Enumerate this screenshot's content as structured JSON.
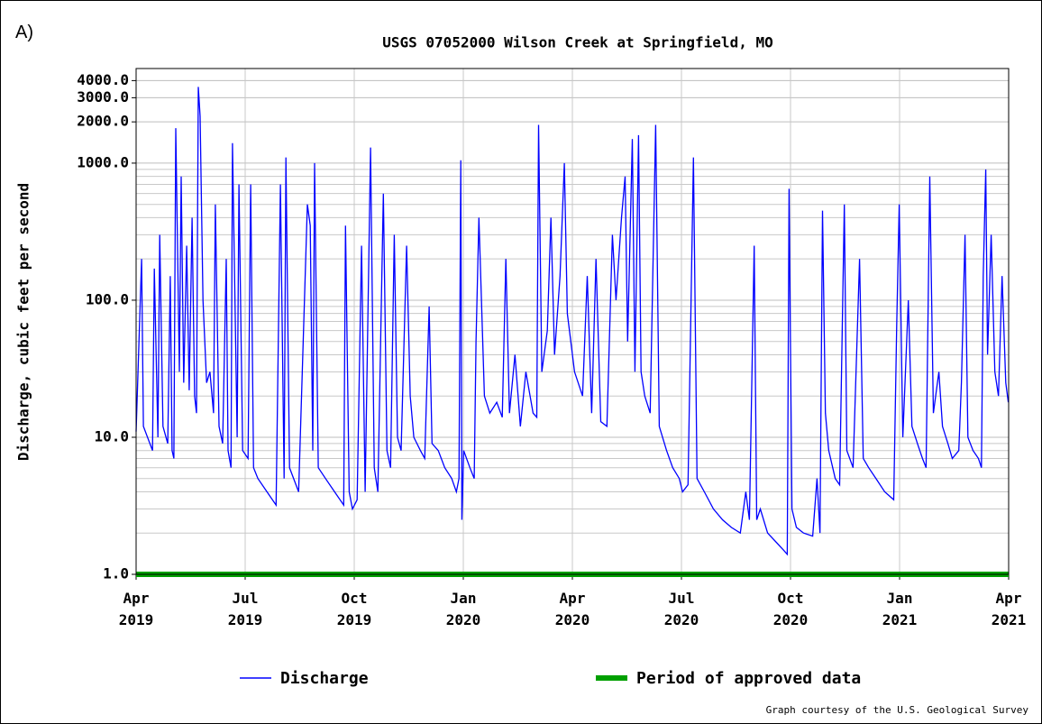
{
  "panel_label": "A)",
  "chart_data": {
    "type": "line",
    "title": "USGS 07052000 Wilson Creek at Springfield, MO",
    "ylabel": "Discharge, cubic feet per second",
    "credit": "Graph courtesy of the U.S. Geological Survey",
    "log_y": true,
    "grid": true,
    "legend": "bottom",
    "xlim": [
      0,
      24
    ],
    "xticks": [
      {
        "value": 0,
        "label": "Apr 2019"
      },
      {
        "value": 3,
        "label": "Jul 2019"
      },
      {
        "value": 6,
        "label": "Oct 2019"
      },
      {
        "value": 9,
        "label": "Jan 2020"
      },
      {
        "value": 12,
        "label": "Apr 2020"
      },
      {
        "value": 15,
        "label": "Jul 2020"
      },
      {
        "value": 18,
        "label": "Oct 2020"
      },
      {
        "value": 21,
        "label": "Jan 2021"
      },
      {
        "value": 24,
        "label": "Apr 2021"
      }
    ],
    "ylim": [
      1,
      4900
    ],
    "yticks": [
      {
        "value": 1,
        "label": "1.0"
      },
      {
        "value": 10,
        "label": "10.0"
      },
      {
        "value": 100,
        "label": "100.0"
      },
      {
        "value": 1000,
        "label": "1000.0"
      },
      {
        "value": 2000,
        "label": "2000.0"
      },
      {
        "value": 3000,
        "label": "3000.0"
      },
      {
        "value": 4000,
        "label": "4000.0"
      }
    ],
    "minor_yticks": [
      2,
      3,
      4,
      5,
      6,
      7,
      8,
      9,
      20,
      30,
      40,
      50,
      60,
      70,
      80,
      90,
      200,
      300,
      400,
      500,
      600,
      700,
      800,
      900
    ],
    "series": [
      {
        "name": "Discharge",
        "color": "#0000ff",
        "line_width": 1.3,
        "x": [
          0,
          0.15,
          0.2,
          0.45,
          0.5,
          0.6,
          0.65,
          0.74,
          0.87,
          0.94,
          0.99,
          1.04,
          1.09,
          1.19,
          1.24,
          1.31,
          1.39,
          1.46,
          1.54,
          1.61,
          1.66,
          1.71,
          1.76,
          1.84,
          1.94,
          2.03,
          2.13,
          2.18,
          2.28,
          2.38,
          2.48,
          2.53,
          2.61,
          2.65,
          2.78,
          2.83,
          2.93,
          3.08,
          3.15,
          3.23,
          3.35,
          3.6,
          3.85,
          3.97,
          4.07,
          4.12,
          4.22,
          4.47,
          4.71,
          4.79,
          4.86,
          4.91,
          5.01,
          5.21,
          5.46,
          5.71,
          5.76,
          5.86,
          5.95,
          6.08,
          6.2,
          6.3,
          6.45,
          6.55,
          6.65,
          6.8,
          6.9,
          7.0,
          7.1,
          7.19,
          7.29,
          7.44,
          7.54,
          7.64,
          7.82,
          7.94,
          8.06,
          8.14,
          8.31,
          8.49,
          8.68,
          8.81,
          8.88,
          8.93,
          8.96,
          9.01,
          9.18,
          9.3,
          9.35,
          9.43,
          9.58,
          9.73,
          9.92,
          10.07,
          10.17,
          10.27,
          10.42,
          10.57,
          10.72,
          10.92,
          11.02,
          11.07,
          11.16,
          11.31,
          11.41,
          11.51,
          11.66,
          11.78,
          11.86,
          12.06,
          12.28,
          12.41,
          12.53,
          12.65,
          12.78,
          12.95,
          13.1,
          13.2,
          13.35,
          13.45,
          13.52,
          13.65,
          13.72,
          13.82,
          13.89,
          13.99,
          14.14,
          14.29,
          14.39,
          14.59,
          14.76,
          14.94,
          15.03,
          15.18,
          15.33,
          15.43,
          15.63,
          15.88,
          16.13,
          16.37,
          16.62,
          16.77,
          16.87,
          17.0,
          17.07,
          17.17,
          17.37,
          17.62,
          17.81,
          17.91,
          17.96,
          18.04,
          18.16,
          18.36,
          18.61,
          18.73,
          18.81,
          18.88,
          18.96,
          19.05,
          19.23,
          19.35,
          19.48,
          19.55,
          19.72,
          19.9,
          20.0,
          20.15,
          20.35,
          20.59,
          20.84,
          20.92,
          20.99,
          21.09,
          21.24,
          21.34,
          21.49,
          21.63,
          21.73,
          21.83,
          21.93,
          22.08,
          22.18,
          22.33,
          22.45,
          22.63,
          22.7,
          22.8,
          22.88,
          23.02,
          23.17,
          23.25,
          23.3,
          23.37,
          23.42,
          23.52,
          23.62,
          23.72,
          23.82,
          23.92,
          23.99
        ],
        "values": [
          11,
          200,
          12,
          8,
          170,
          10,
          300,
          12,
          9,
          150,
          8,
          7,
          1800,
          30,
          800,
          25,
          250,
          22,
          400,
          20,
          15,
          3600,
          2200,
          100,
          25,
          30,
          15,
          500,
          12,
          9,
          200,
          8,
          6,
          1400,
          10,
          700,
          8,
          7,
          700,
          6,
          5,
          4,
          3.2,
          700,
          5,
          1100,
          6,
          4,
          500,
          350,
          8,
          1000,
          6,
          5,
          4,
          3.2,
          350,
          4,
          3,
          3.5,
          250,
          4,
          1300,
          6,
          4,
          600,
          8,
          6,
          300,
          10,
          8,
          250,
          20,
          10,
          8,
          7,
          90,
          9,
          8,
          6,
          5,
          4,
          5,
          1050,
          2.5,
          8,
          6,
          5,
          50,
          400,
          20,
          15,
          18,
          14,
          200,
          15,
          40,
          12,
          30,
          15,
          14,
          1900,
          30,
          60,
          400,
          40,
          150,
          1000,
          80,
          30,
          20,
          150,
          15,
          200,
          13,
          12,
          300,
          100,
          400,
          800,
          50,
          1500,
          30,
          1600,
          30,
          20,
          15,
          1900,
          12,
          8,
          6,
          5,
          4,
          4.5,
          1100,
          5,
          4,
          3,
          2.5,
          2.2,
          2.0,
          4,
          2.5,
          250,
          2.5,
          3,
          2.0,
          1.7,
          1.5,
          1.4,
          650,
          3,
          2.2,
          2.0,
          1.9,
          5,
          2,
          450,
          15,
          8,
          5,
          4.5,
          500,
          8,
          6,
          200,
          7,
          6,
          5,
          4,
          3.5,
          65,
          500,
          10,
          100,
          12,
          9,
          7,
          6,
          800,
          15,
          30,
          12,
          9,
          7,
          8,
          25,
          300,
          10,
          8,
          7,
          6,
          150,
          900,
          40,
          300,
          30,
          20,
          150,
          25,
          18
        ]
      },
      {
        "name": "Period of approved data",
        "color": "#00a000",
        "line_width": 6,
        "x": [
          0,
          24
        ],
        "values": [
          1,
          1
        ]
      }
    ]
  }
}
